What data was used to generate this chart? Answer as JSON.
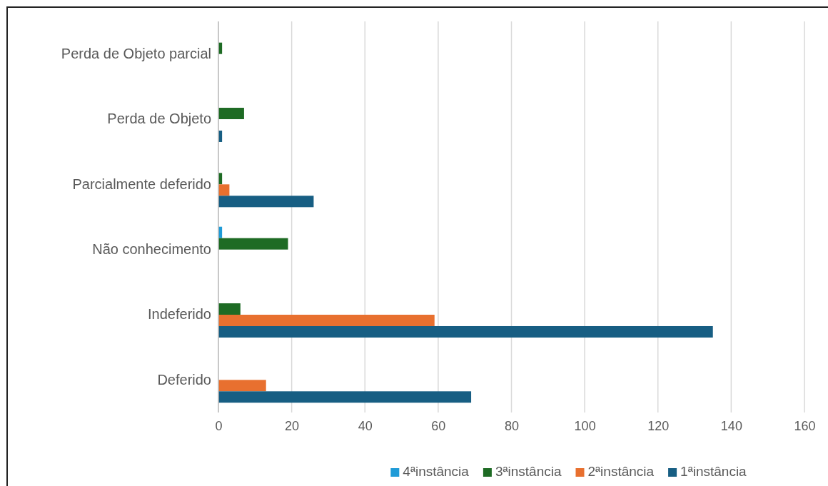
{
  "chart_data": {
    "type": "bar",
    "orientation": "horizontal",
    "categories": [
      "Perda de Objeto parcial",
      "Perda de Objeto",
      "Parcialmente deferido",
      "Não conhecimento",
      "Indeferido",
      "Deferido"
    ],
    "series": [
      {
        "name": "4ªinstância",
        "color": "#1f9bd7",
        "values": [
          0,
          0,
          0,
          1,
          0,
          0
        ]
      },
      {
        "name": "3ªinstância",
        "color": "#1e6b24",
        "values": [
          1,
          7,
          1,
          19,
          6,
          0
        ]
      },
      {
        "name": "2ªinstância",
        "color": "#e8702f",
        "values": [
          0,
          0,
          3,
          0,
          59,
          13
        ]
      },
      {
        "name": "1ªinstância",
        "color": "#175e83",
        "values": [
          0,
          1,
          26,
          0,
          135,
          69
        ]
      }
    ],
    "xlim": [
      0,
      160
    ],
    "xticks": [
      0,
      20,
      40,
      60,
      80,
      100,
      120,
      140,
      160
    ],
    "grid": "x",
    "legend": "bottom"
  }
}
